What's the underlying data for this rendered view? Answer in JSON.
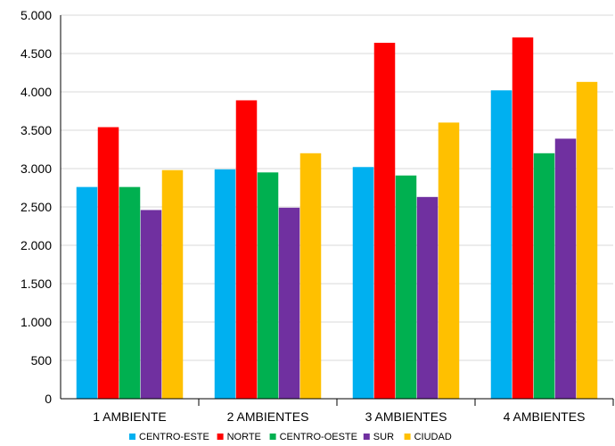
{
  "chart_data": {
    "type": "bar",
    "categories": [
      "1 AMBIENTE",
      "2 AMBIENTES",
      "3 AMBIENTES",
      "4 AMBIENTES"
    ],
    "series": [
      {
        "name": "CENTRO-ESTE",
        "color": "#00B0F0",
        "values": [
          2760,
          2990,
          3020,
          4020
        ]
      },
      {
        "name": "NORTE",
        "color": "#FF0000",
        "values": [
          3540,
          3890,
          4640,
          4710
        ]
      },
      {
        "name": "CENTRO-OESTE",
        "color": "#00B050",
        "values": [
          2760,
          2950,
          2910,
          3200
        ]
      },
      {
        "name": "SUR",
        "color": "#7030A0",
        "values": [
          2460,
          2490,
          2630,
          3390
        ]
      },
      {
        "name": "CIUDAD",
        "color": "#FFC000",
        "values": [
          2980,
          3200,
          3600,
          4130
        ]
      }
    ],
    "ylim": [
      0,
      5000
    ],
    "yticks": [
      0,
      500,
      1000,
      1500,
      2000,
      2500,
      3000,
      3500,
      4000,
      4500,
      5000
    ],
    "ytick_labels": [
      "0",
      "500",
      "1.000",
      "1.500",
      "2.000",
      "2.500",
      "3.000",
      "3.500",
      "4.000",
      "4.500",
      "5.000"
    ],
    "grid": true,
    "legend_position": "bottom"
  }
}
